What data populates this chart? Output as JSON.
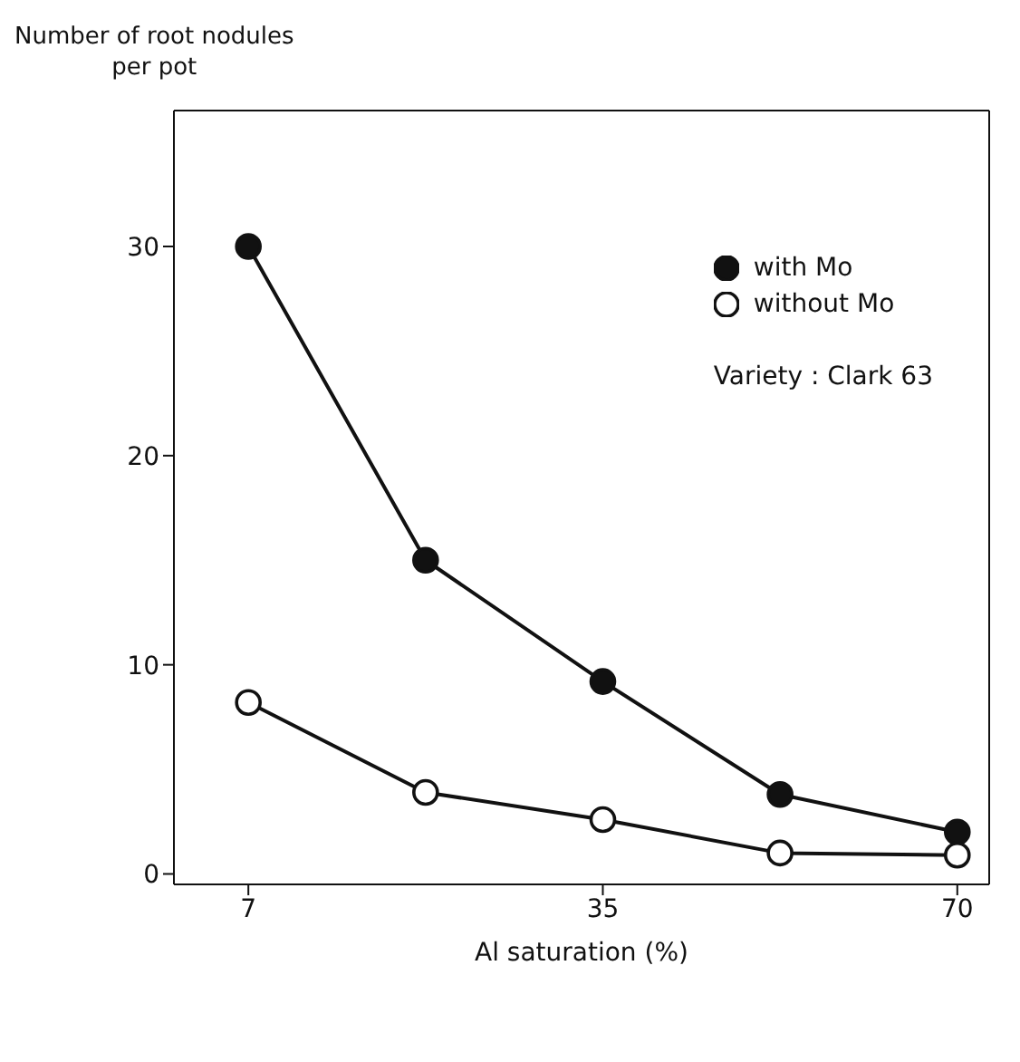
{
  "chart_data": {
    "type": "line",
    "ylabel": "Number of root nodules\nper pot",
    "xlabel": "Al saturation (%)",
    "categories": [
      "7",
      null,
      "35",
      null,
      "70"
    ],
    "series": [
      {
        "name": "with Mo",
        "color": "#111111",
        "values": [
          30,
          15,
          9.2,
          3.8,
          2
        ]
      },
      {
        "name": "without Mo",
        "color": "#111111",
        "values": [
          8.2,
          3.9,
          2.6,
          1,
          0.9
        ]
      }
    ],
    "annotations": [
      "Variety : Clark 63"
    ],
    "ylim": [
      -0.5,
      36.5
    ],
    "yticks": [
      0,
      10,
      20,
      30
    ],
    "legend": "top right",
    "marker": "circle",
    "line_style": "solid"
  }
}
